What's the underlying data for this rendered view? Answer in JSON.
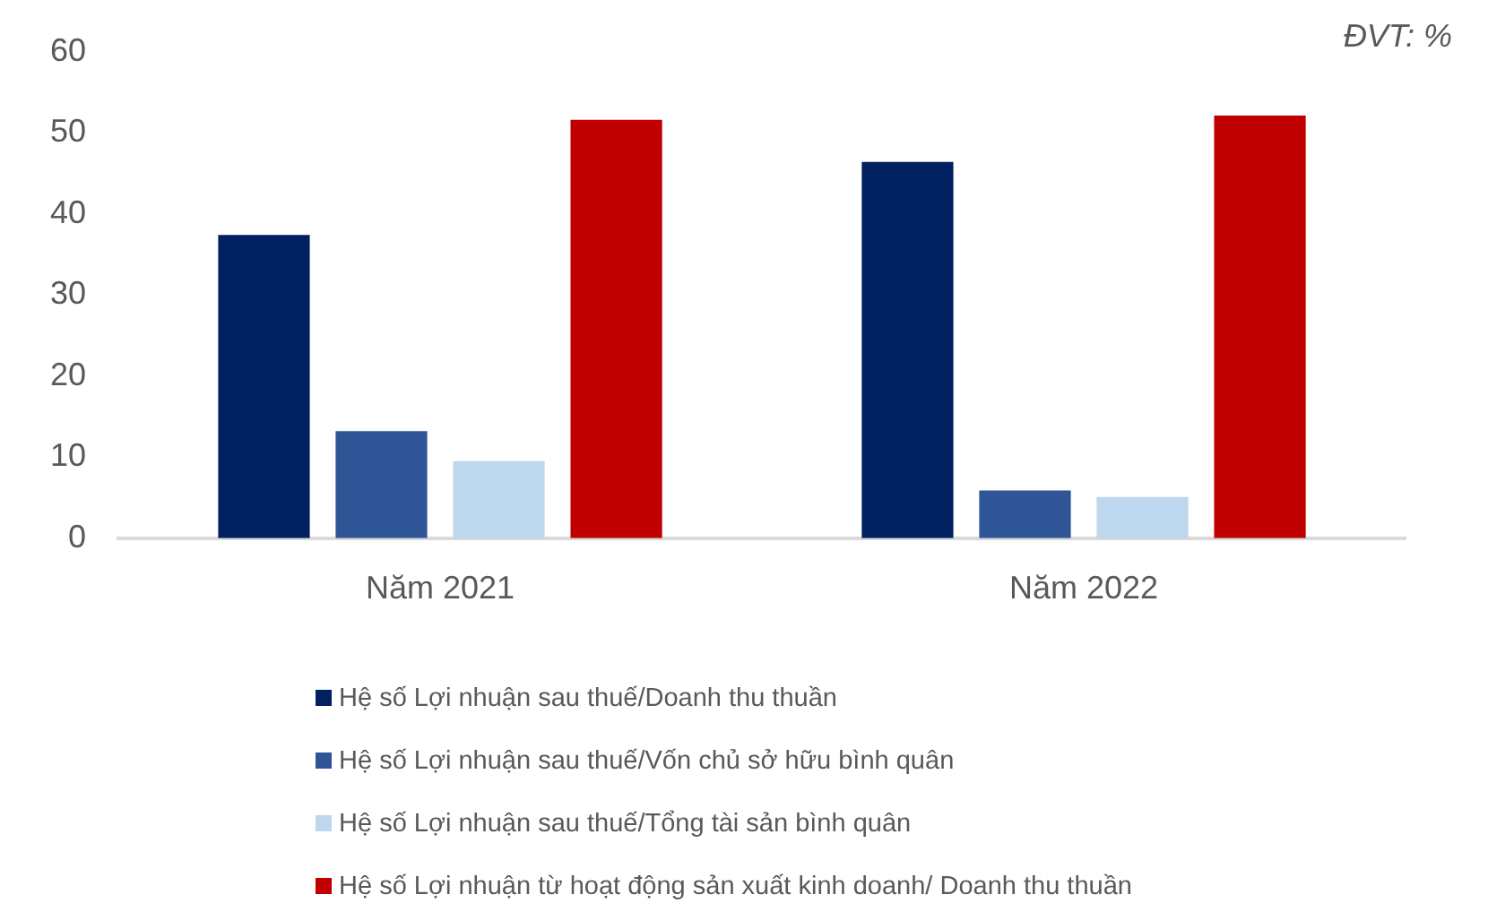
{
  "chart_data": {
    "type": "bar",
    "annotations": [
      "ĐVT: %"
    ],
    "categories": [
      "Năm 2021",
      "Năm 2022"
    ],
    "series": [
      {
        "name": "Hệ số Lợi nhuận sau thuế/Doanh thu thuần",
        "color": "#002060",
        "values": [
          37.4,
          46.4
        ]
      },
      {
        "name": "Hệ số Lợi nhuận sau thuế/Vốn chủ sở hữu bình quân",
        "color": "#2f5597",
        "values": [
          13.2,
          5.9
        ]
      },
      {
        "name": "Hệ số Lợi nhuận sau thuế/Tổng tài sản bình quân",
        "color": "#bdd7ee",
        "values": [
          9.5,
          5.1
        ]
      },
      {
        "name": "Hệ số Lợi nhuận từ hoạt động sản xuất kinh doanh/ Doanh thu thuần",
        "color": "#c00000",
        "values": [
          51.6,
          52.1
        ]
      }
    ],
    "ylim": [
      0,
      60
    ],
    "yticks": [
      0,
      10,
      20,
      30,
      40,
      50,
      60
    ],
    "grid": false,
    "legend": "bottom"
  }
}
